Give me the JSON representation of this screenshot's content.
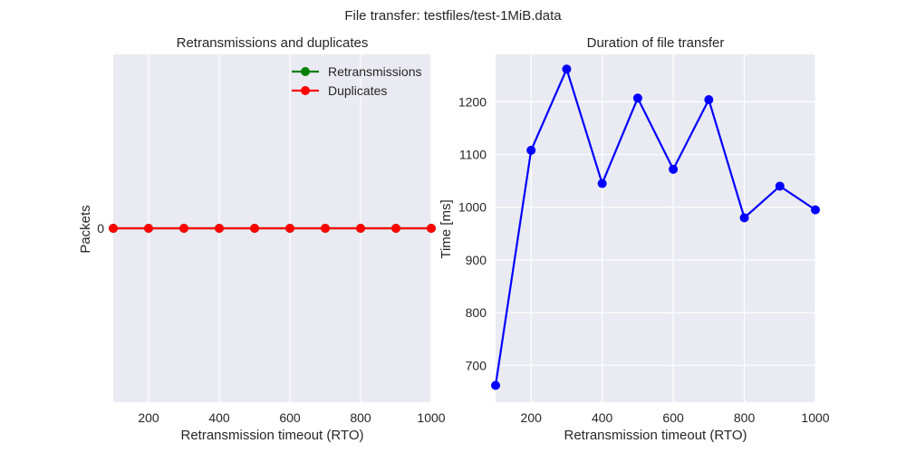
{
  "figure": {
    "suptitle": "File transfer: testfiles/test-1MiB.data"
  },
  "chart_data": [
    {
      "type": "line",
      "title": "Retransmissions and duplicates",
      "xlabel": "Retransmission timeout (RTO)",
      "ylabel": "Packets",
      "x": [
        100,
        200,
        300,
        400,
        500,
        600,
        700,
        800,
        900,
        1000
      ],
      "xlim": [
        100,
        1000
      ],
      "xticks": [
        200,
        400,
        600,
        800,
        1000
      ],
      "ylim": [
        -0.055,
        0.055
      ],
      "yticks": [
        0
      ],
      "grid": true,
      "legend": "top-right",
      "series": [
        {
          "name": "Retransmissions",
          "color": "#008000",
          "values": [
            0,
            0,
            0,
            0,
            0,
            0,
            0,
            0,
            0,
            0
          ]
        },
        {
          "name": "Duplicates",
          "color": "#ff0000",
          "values": [
            0,
            0,
            0,
            0,
            0,
            0,
            0,
            0,
            0,
            0
          ]
        }
      ]
    },
    {
      "type": "line",
      "title": "Duration of file transfer",
      "xlabel": "Retransmission timeout (RTO)",
      "ylabel": "Time [ms]",
      "x": [
        100,
        200,
        300,
        400,
        500,
        600,
        700,
        800,
        900,
        1000
      ],
      "xlim": [
        100,
        1000
      ],
      "xticks": [
        200,
        400,
        600,
        800,
        1000
      ],
      "ylim": [
        630,
        1290
      ],
      "yticks": [
        700,
        800,
        900,
        1000,
        1100,
        1200
      ],
      "grid": true,
      "series": [
        {
          "color": "#0000ff",
          "values": [
            662,
            1108,
            1262,
            1045,
            1207,
            1072,
            1204,
            980,
            1040,
            995
          ]
        }
      ]
    }
  ]
}
